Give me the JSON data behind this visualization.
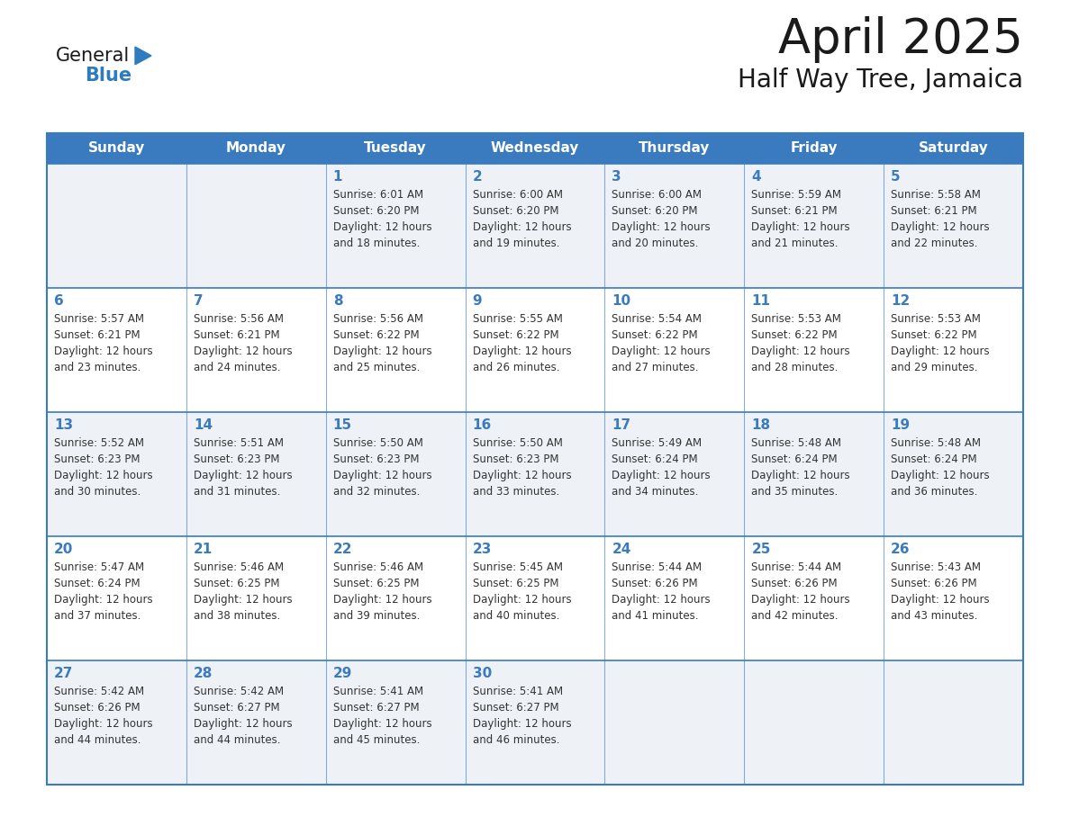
{
  "title": "April 2025",
  "subtitle": "Half Way Tree, Jamaica",
  "days_of_week": [
    "Sunday",
    "Monday",
    "Tuesday",
    "Wednesday",
    "Thursday",
    "Friday",
    "Saturday"
  ],
  "header_bg_color": "#3a7bbf",
  "header_text_color": "#ffffff",
  "row_bg_odd": "#eef2f7",
  "row_bg_even": "#ffffff",
  "cell_border_color": "#3a7bbf",
  "title_color": "#1a1a1a",
  "subtitle_color": "#1a1a1a",
  "day_number_color": "#3a7bbf",
  "cell_text_color": "#333333",
  "logo_general_color": "#1a1a1a",
  "logo_blue_color": "#2e7bbf",
  "weeks": [
    [
      {
        "day": null,
        "text": ""
      },
      {
        "day": null,
        "text": ""
      },
      {
        "day": 1,
        "text": "Sunrise: 6:01 AM\nSunset: 6:20 PM\nDaylight: 12 hours\nand 18 minutes."
      },
      {
        "day": 2,
        "text": "Sunrise: 6:00 AM\nSunset: 6:20 PM\nDaylight: 12 hours\nand 19 minutes."
      },
      {
        "day": 3,
        "text": "Sunrise: 6:00 AM\nSunset: 6:20 PM\nDaylight: 12 hours\nand 20 minutes."
      },
      {
        "day": 4,
        "text": "Sunrise: 5:59 AM\nSunset: 6:21 PM\nDaylight: 12 hours\nand 21 minutes."
      },
      {
        "day": 5,
        "text": "Sunrise: 5:58 AM\nSunset: 6:21 PM\nDaylight: 12 hours\nand 22 minutes."
      }
    ],
    [
      {
        "day": 6,
        "text": "Sunrise: 5:57 AM\nSunset: 6:21 PM\nDaylight: 12 hours\nand 23 minutes."
      },
      {
        "day": 7,
        "text": "Sunrise: 5:56 AM\nSunset: 6:21 PM\nDaylight: 12 hours\nand 24 minutes."
      },
      {
        "day": 8,
        "text": "Sunrise: 5:56 AM\nSunset: 6:22 PM\nDaylight: 12 hours\nand 25 minutes."
      },
      {
        "day": 9,
        "text": "Sunrise: 5:55 AM\nSunset: 6:22 PM\nDaylight: 12 hours\nand 26 minutes."
      },
      {
        "day": 10,
        "text": "Sunrise: 5:54 AM\nSunset: 6:22 PM\nDaylight: 12 hours\nand 27 minutes."
      },
      {
        "day": 11,
        "text": "Sunrise: 5:53 AM\nSunset: 6:22 PM\nDaylight: 12 hours\nand 28 minutes."
      },
      {
        "day": 12,
        "text": "Sunrise: 5:53 AM\nSunset: 6:22 PM\nDaylight: 12 hours\nand 29 minutes."
      }
    ],
    [
      {
        "day": 13,
        "text": "Sunrise: 5:52 AM\nSunset: 6:23 PM\nDaylight: 12 hours\nand 30 minutes."
      },
      {
        "day": 14,
        "text": "Sunrise: 5:51 AM\nSunset: 6:23 PM\nDaylight: 12 hours\nand 31 minutes."
      },
      {
        "day": 15,
        "text": "Sunrise: 5:50 AM\nSunset: 6:23 PM\nDaylight: 12 hours\nand 32 minutes."
      },
      {
        "day": 16,
        "text": "Sunrise: 5:50 AM\nSunset: 6:23 PM\nDaylight: 12 hours\nand 33 minutes."
      },
      {
        "day": 17,
        "text": "Sunrise: 5:49 AM\nSunset: 6:24 PM\nDaylight: 12 hours\nand 34 minutes."
      },
      {
        "day": 18,
        "text": "Sunrise: 5:48 AM\nSunset: 6:24 PM\nDaylight: 12 hours\nand 35 minutes."
      },
      {
        "day": 19,
        "text": "Sunrise: 5:48 AM\nSunset: 6:24 PM\nDaylight: 12 hours\nand 36 minutes."
      }
    ],
    [
      {
        "day": 20,
        "text": "Sunrise: 5:47 AM\nSunset: 6:24 PM\nDaylight: 12 hours\nand 37 minutes."
      },
      {
        "day": 21,
        "text": "Sunrise: 5:46 AM\nSunset: 6:25 PM\nDaylight: 12 hours\nand 38 minutes."
      },
      {
        "day": 22,
        "text": "Sunrise: 5:46 AM\nSunset: 6:25 PM\nDaylight: 12 hours\nand 39 minutes."
      },
      {
        "day": 23,
        "text": "Sunrise: 5:45 AM\nSunset: 6:25 PM\nDaylight: 12 hours\nand 40 minutes."
      },
      {
        "day": 24,
        "text": "Sunrise: 5:44 AM\nSunset: 6:26 PM\nDaylight: 12 hours\nand 41 minutes."
      },
      {
        "day": 25,
        "text": "Sunrise: 5:44 AM\nSunset: 6:26 PM\nDaylight: 12 hours\nand 42 minutes."
      },
      {
        "day": 26,
        "text": "Sunrise: 5:43 AM\nSunset: 6:26 PM\nDaylight: 12 hours\nand 43 minutes."
      }
    ],
    [
      {
        "day": 27,
        "text": "Sunrise: 5:42 AM\nSunset: 6:26 PM\nDaylight: 12 hours\nand 44 minutes."
      },
      {
        "day": 28,
        "text": "Sunrise: 5:42 AM\nSunset: 6:27 PM\nDaylight: 12 hours\nand 44 minutes."
      },
      {
        "day": 29,
        "text": "Sunrise: 5:41 AM\nSunset: 6:27 PM\nDaylight: 12 hours\nand 45 minutes."
      },
      {
        "day": 30,
        "text": "Sunrise: 5:41 AM\nSunset: 6:27 PM\nDaylight: 12 hours\nand 46 minutes."
      },
      {
        "day": null,
        "text": ""
      },
      {
        "day": null,
        "text": ""
      },
      {
        "day": null,
        "text": ""
      }
    ]
  ]
}
